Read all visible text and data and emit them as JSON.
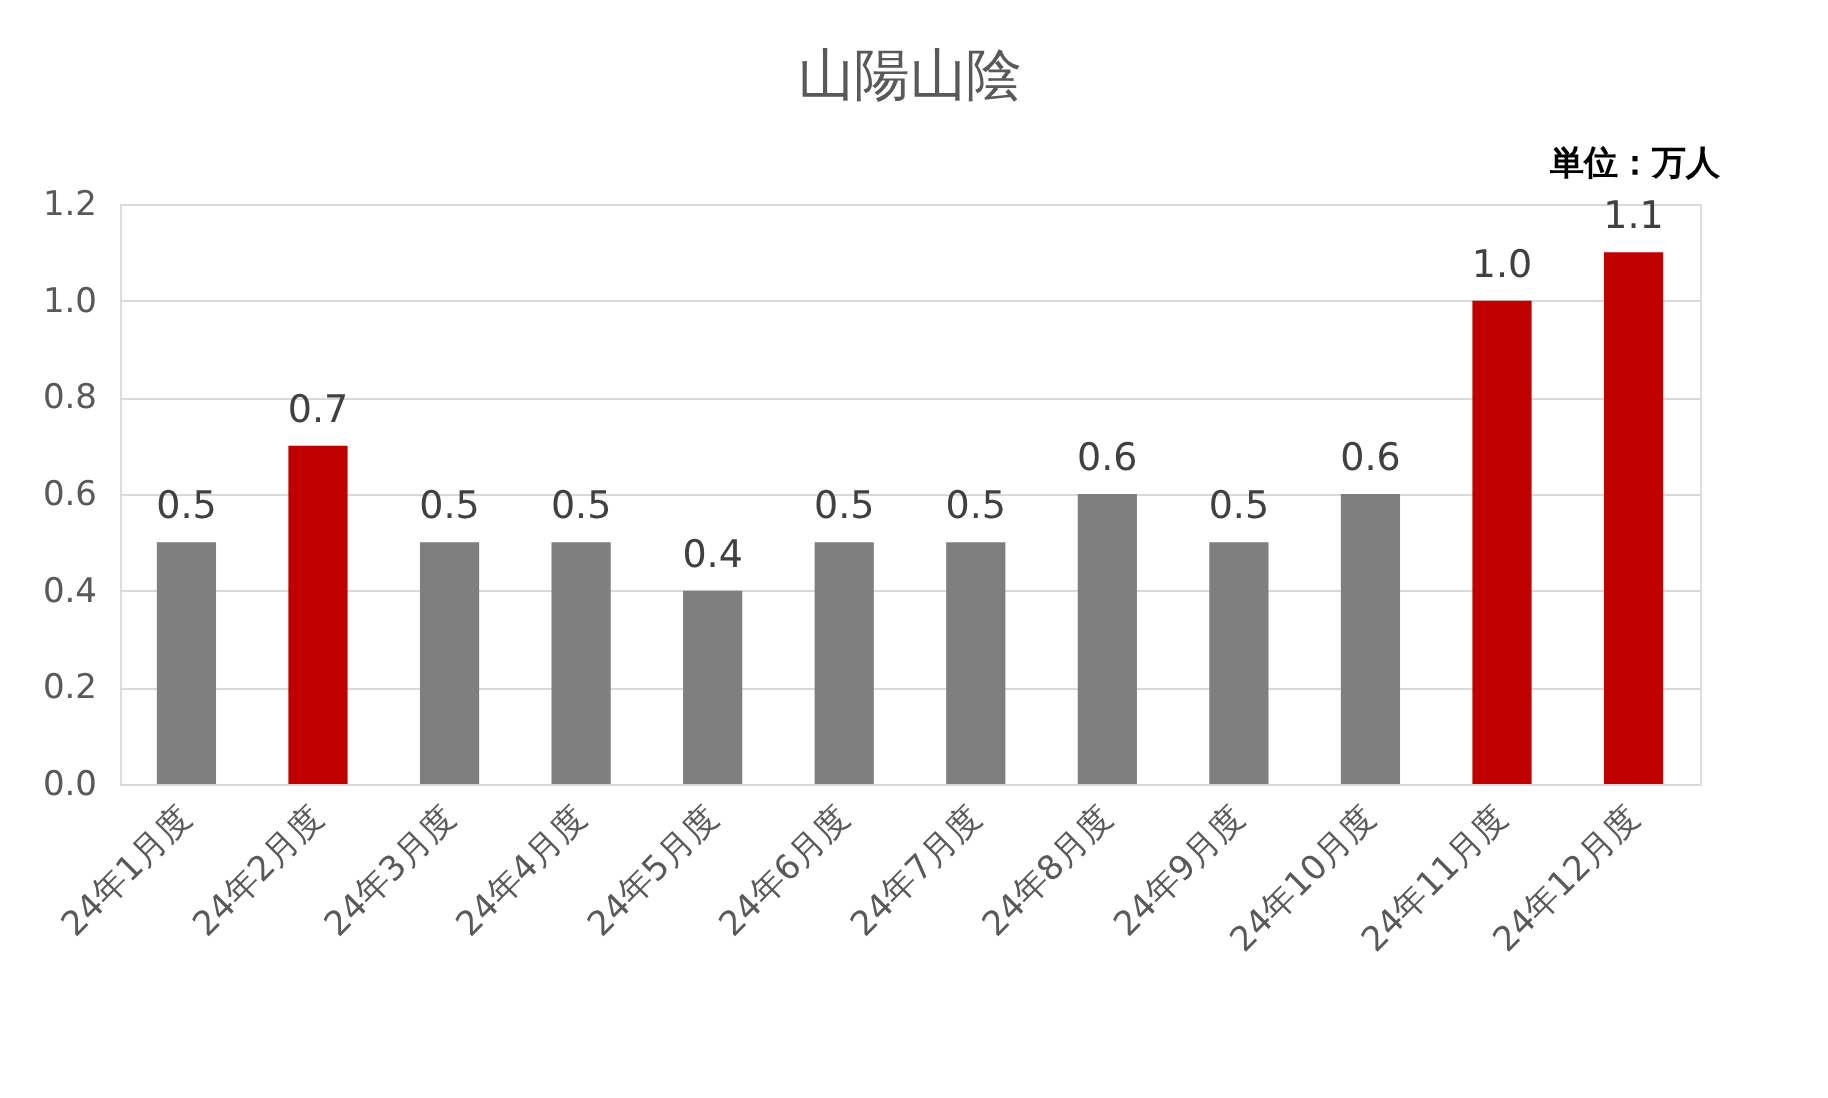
{
  "chart_data": {
    "type": "bar",
    "title": "山陽山陰",
    "annotations": [
      "単位：万人"
    ],
    "categories": [
      "24年1月度",
      "24年2月度",
      "24年3月度",
      "24年4月度",
      "24年5月度",
      "24年6月度",
      "24年7月度",
      "24年8月度",
      "24年9月度",
      "24年10月度",
      "24年11月度",
      "24年12月度"
    ],
    "values": [
      0.5,
      0.7,
      0.5,
      0.5,
      0.4,
      0.5,
      0.5,
      0.6,
      0.5,
      0.6,
      1.0,
      1.1
    ],
    "value_labels": [
      "0.5",
      "0.7",
      "0.5",
      "0.5",
      "0.4",
      "0.5",
      "0.5",
      "0.6",
      "0.5",
      "0.6",
      "1.0",
      "1.1"
    ],
    "colors": [
      "#7f7f7f",
      "#c00000",
      "#7f7f7f",
      "#7f7f7f",
      "#7f7f7f",
      "#7f7f7f",
      "#7f7f7f",
      "#7f7f7f",
      "#7f7f7f",
      "#7f7f7f",
      "#c00000",
      "#c00000"
    ],
    "ylim": [
      0,
      1.2
    ],
    "yticks": [
      {
        "value": 0,
        "label": "0.0"
      },
      {
        "value": 0.2,
        "label": "0.2"
      },
      {
        "value": 0.4,
        "label": "0.4"
      },
      {
        "value": 0.6,
        "label": "0.6"
      },
      {
        "value": 0.8,
        "label": "0.8"
      },
      {
        "value": 1.0,
        "label": "1.0"
      },
      {
        "value": 1.2,
        "label": "1.2"
      }
    ],
    "grid": "y"
  }
}
